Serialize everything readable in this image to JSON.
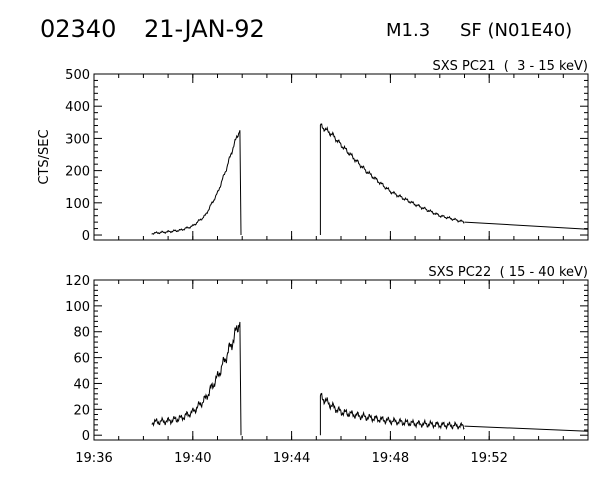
{
  "header": {
    "event_id": "02340",
    "date": "21-JAN-92",
    "flare_class": "M1.3",
    "location": "SF (N01E40)"
  },
  "chart_data": [
    {
      "type": "line",
      "title": "SXS PC21  (  3 - 15 keV)",
      "ylabel": "CTS/SEC",
      "xlabel": "",
      "ylim": [
        0,
        500
      ],
      "yticks": [
        0,
        100,
        200,
        300,
        400,
        500
      ],
      "xlim": [
        "19:36",
        "19:56"
      ],
      "xticks": [
        "19:36",
        "19:40",
        "19:44",
        "19:48",
        "19:52"
      ],
      "grid": false,
      "series": [
        {
          "segments": [
            {
              "x": [
                "19:38:20",
                "19:39:00",
                "19:39:30",
                "19:40:00",
                "19:40:30",
                "19:41:00",
                "19:41:20",
                "19:41:40",
                "19:41:55"
              ],
              "y": [
                5,
                10,
                15,
                28,
                60,
                130,
                200,
                280,
                330
              ]
            },
            {
              "x": [
                "19:45:10",
                "19:45:40",
                "19:46:00",
                "19:47:00",
                "19:48:00",
                "19:49:00",
                "19:50:00",
                "19:51:00"
              ],
              "y": [
                340,
                310,
                280,
                200,
                135,
                95,
                60,
                40
              ]
            },
            {
              "x": [
                "19:51:00",
                "19:56:00"
              ],
              "y": [
                40,
                18
              ]
            }
          ]
        }
      ]
    },
    {
      "type": "line",
      "title": "SXS PC22  ( 15 - 40 keV)",
      "ylabel": "",
      "xlabel": "",
      "ylim": [
        0,
        120
      ],
      "yticks": [
        0,
        20,
        40,
        60,
        80,
        100,
        120
      ],
      "xlim": [
        "19:36",
        "19:56"
      ],
      "xticks": [
        "19:36",
        "19:40",
        "19:44",
        "19:48",
        "19:52"
      ],
      "grid": false,
      "series": [
        {
          "segments": [
            {
              "x": [
                "19:38:20",
                "19:39:00",
                "19:39:30",
                "19:40:00",
                "19:40:30",
                "19:41:00",
                "19:41:20",
                "19:41:40",
                "19:41:55"
              ],
              "y": [
                10,
                11,
                13,
                18,
                28,
                45,
                60,
                75,
                90
              ]
            },
            {
              "x": [
                "19:45:10",
                "19:45:40",
                "19:46:00",
                "19:47:00",
                "19:48:00",
                "19:49:00",
                "19:50:00",
                "19:51:00"
              ],
              "y": [
                30,
                22,
                18,
                14,
                11,
                9,
                8,
                7
              ]
            },
            {
              "x": [
                "19:51:00",
                "19:56:00"
              ],
              "y": [
                7,
                3
              ]
            }
          ]
        }
      ]
    }
  ]
}
